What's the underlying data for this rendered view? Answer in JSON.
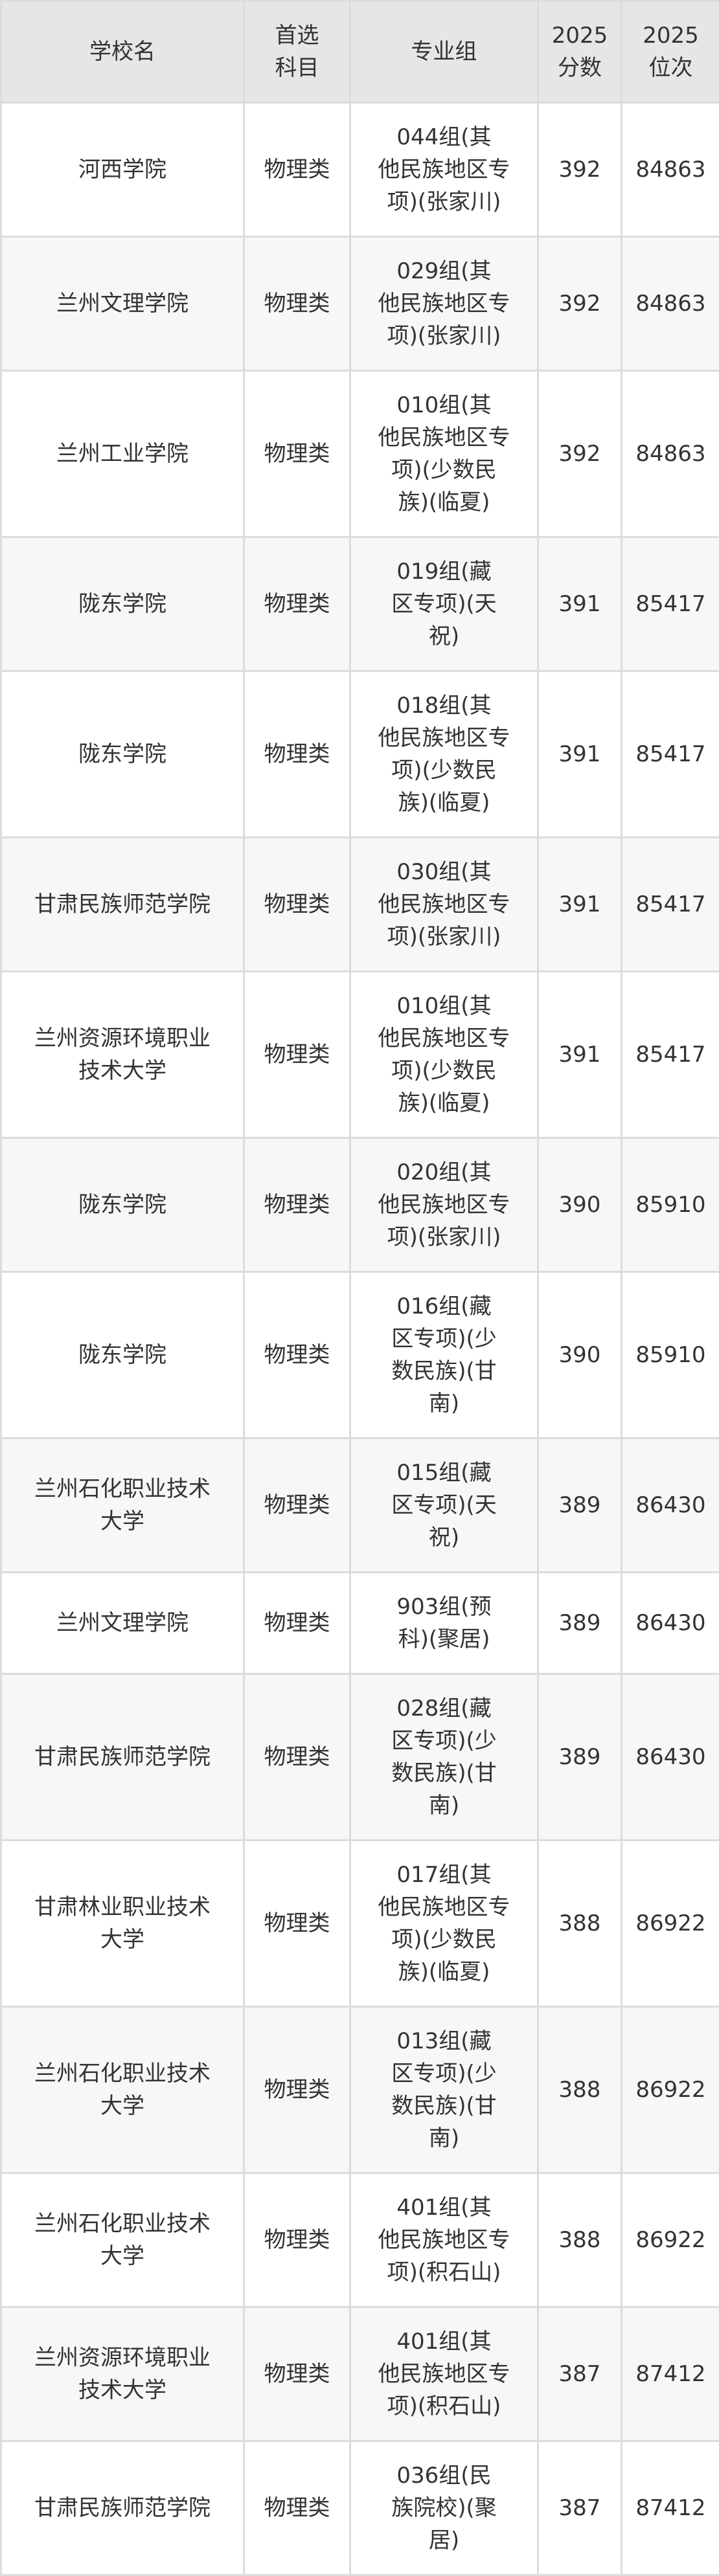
{
  "table": {
    "headers": [
      "学校名",
      "首选\n科目",
      "专业组",
      "2025\n分数",
      "2025\n位次"
    ],
    "rows": [
      {
        "school": "河西学院",
        "subject": "物理类",
        "group": "044组(其\n他民族地区专\n项)(张家川)",
        "score": "392",
        "rank": "84863"
      },
      {
        "school": "兰州文理学院",
        "subject": "物理类",
        "group": "029组(其\n他民族地区专\n项)(张家川)",
        "score": "392",
        "rank": "84863"
      },
      {
        "school": "兰州工业学院",
        "subject": "物理类",
        "group": "010组(其\n他民族地区专\n项)(少数民\n族)(临夏)",
        "score": "392",
        "rank": "84863"
      },
      {
        "school": "陇东学院",
        "subject": "物理类",
        "group": "019组(藏\n区专项)(天\n祝)",
        "score": "391",
        "rank": "85417"
      },
      {
        "school": "陇东学院",
        "subject": "物理类",
        "group": "018组(其\n他民族地区专\n项)(少数民\n族)(临夏)",
        "score": "391",
        "rank": "85417"
      },
      {
        "school": "甘肃民族师范学院",
        "subject": "物理类",
        "group": "030组(其\n他民族地区专\n项)(张家川)",
        "score": "391",
        "rank": "85417"
      },
      {
        "school": "兰州资源环境职业\n技术大学",
        "subject": "物理类",
        "group": "010组(其\n他民族地区专\n项)(少数民\n族)(临夏)",
        "score": "391",
        "rank": "85417"
      },
      {
        "school": "陇东学院",
        "subject": "物理类",
        "group": "020组(其\n他民族地区专\n项)(张家川)",
        "score": "390",
        "rank": "85910"
      },
      {
        "school": "陇东学院",
        "subject": "物理类",
        "group": "016组(藏\n区专项)(少\n数民族)(甘\n南)",
        "score": "390",
        "rank": "85910"
      },
      {
        "school": "兰州石化职业技术\n大学",
        "subject": "物理类",
        "group": "015组(藏\n区专项)(天\n祝)",
        "score": "389",
        "rank": "86430"
      },
      {
        "school": "兰州文理学院",
        "subject": "物理类",
        "group": "903组(预\n科)(聚居)",
        "score": "389",
        "rank": "86430"
      },
      {
        "school": "甘肃民族师范学院",
        "subject": "物理类",
        "group": "028组(藏\n区专项)(少\n数民族)(甘\n南)",
        "score": "389",
        "rank": "86430"
      },
      {
        "school": "甘肃林业职业技术\n大学",
        "subject": "物理类",
        "group": "017组(其\n他民族地区专\n项)(少数民\n族)(临夏)",
        "score": "388",
        "rank": "86922"
      },
      {
        "school": "兰州石化职业技术\n大学",
        "subject": "物理类",
        "group": "013组(藏\n区专项)(少\n数民族)(甘\n南)",
        "score": "388",
        "rank": "86922"
      },
      {
        "school": "兰州石化职业技术\n大学",
        "subject": "物理类",
        "group": "401组(其\n他民族地区专\n项)(积石山)",
        "score": "388",
        "rank": "86922"
      },
      {
        "school": "兰州资源环境职业\n技术大学",
        "subject": "物理类",
        "group": "401组(其\n他民族地区专\n项)(积石山)",
        "score": "387",
        "rank": "87412"
      },
      {
        "school": "甘肃民族师范学院",
        "subject": "物理类",
        "group": "036组(民\n族院校)(聚\n居)",
        "score": "387",
        "rank": "87412"
      }
    ]
  }
}
